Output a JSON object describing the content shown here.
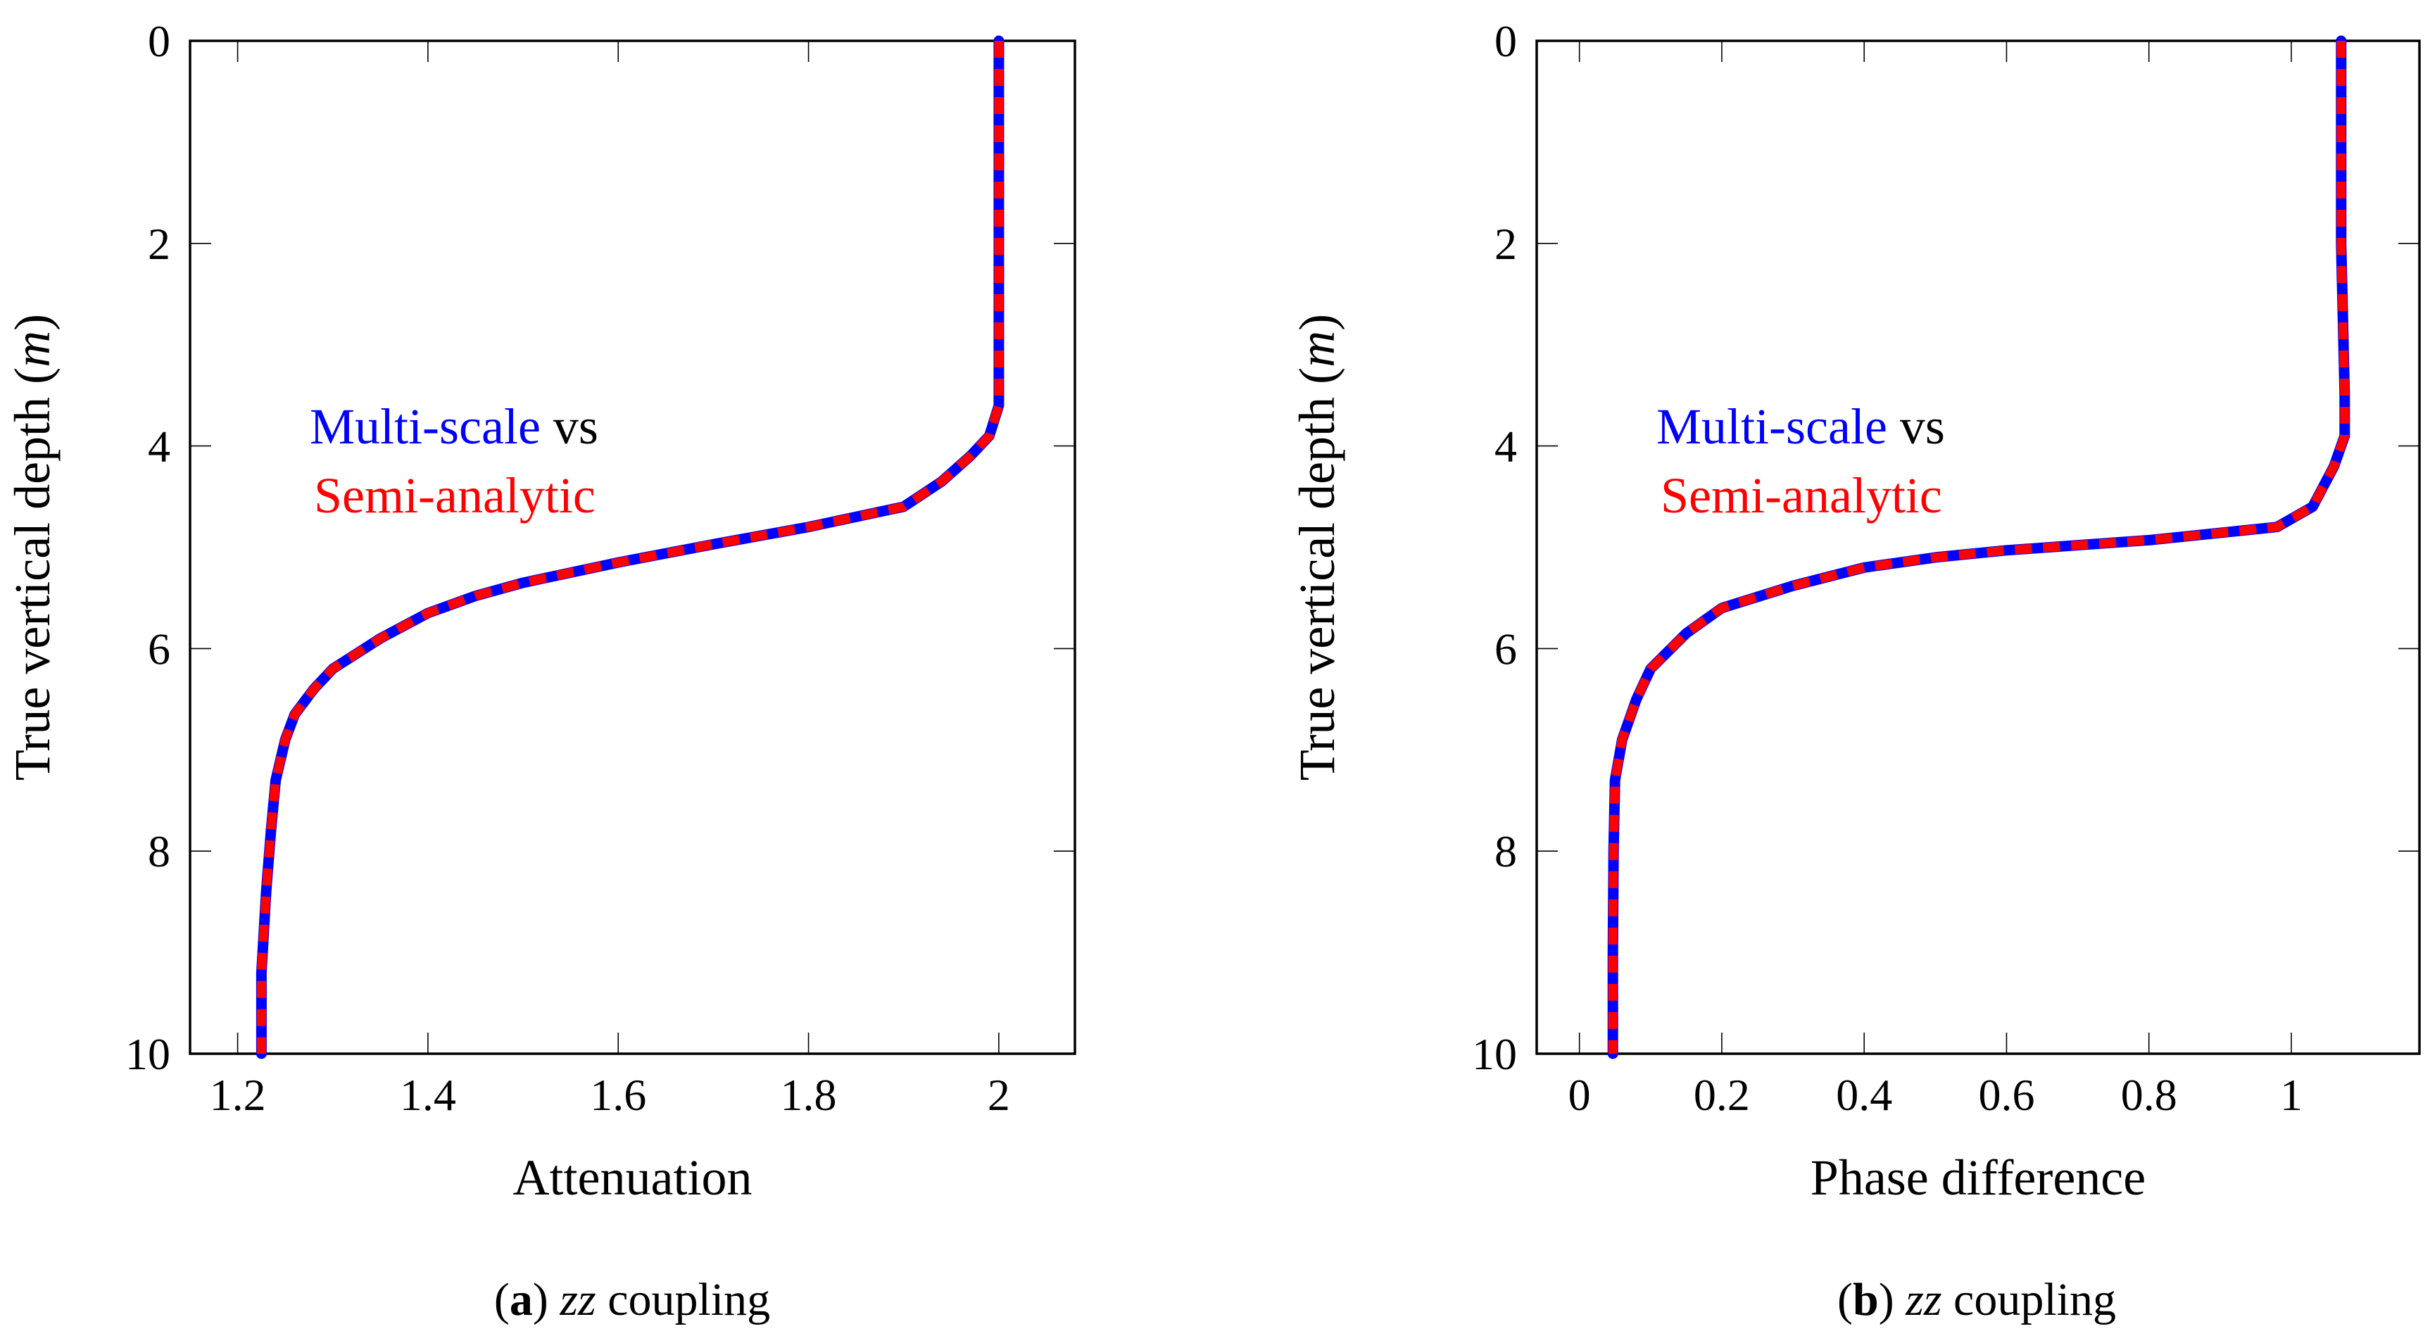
{
  "chart_data": [
    {
      "type": "line",
      "panel": "a",
      "xlabel": "Attenuation",
      "ylabel": "True vertical depth (m)",
      "ylabel_text": "True vertical depth (",
      "ylabel_unit": "m",
      "ylabel_close": ")",
      "caption": {
        "letter": "a",
        "coupling": "zz",
        "text": "coupling"
      },
      "xlim": [
        1.15,
        2.08
      ],
      "ylim": [
        10,
        0
      ],
      "x_ticks": [
        1.2,
        1.4,
        1.6,
        1.8,
        2
      ],
      "x_tick_labels": [
        "1.2",
        "1.4",
        "1.6",
        "1.8",
        "2"
      ],
      "y_ticks": [
        0,
        2,
        4,
        6,
        8,
        10
      ],
      "y_tick_labels": [
        "0",
        "2",
        "4",
        "6",
        "8",
        "10"
      ],
      "legend": {
        "series1": "Multi-scale",
        "connector": " vs",
        "series2": "Semi-analytic",
        "anchor": "upper-left"
      },
      "series": [
        {
          "name": "Multi-scale",
          "color": "#0000ff",
          "style": "solid",
          "x": [
            2.0,
            2.0,
            2.0,
            2.0,
            1.99,
            1.97,
            1.94,
            1.9,
            1.8,
            1.7,
            1.6,
            1.5,
            1.45,
            1.4,
            1.35,
            1.3,
            1.28,
            1.26,
            1.25,
            1.24,
            1.235,
            1.23,
            1.225,
            1.225
          ],
          "y": [
            0,
            1,
            2,
            3.6,
            3.9,
            4.1,
            4.35,
            4.6,
            4.8,
            4.97,
            5.15,
            5.35,
            5.48,
            5.65,
            5.9,
            6.2,
            6.4,
            6.65,
            6.9,
            7.3,
            7.8,
            8.4,
            9.2,
            10
          ]
        },
        {
          "name": "Semi-analytic",
          "color": "#ff0000",
          "style": "dashed",
          "x": [
            2.0,
            2.0,
            2.0,
            2.0,
            1.99,
            1.97,
            1.94,
            1.9,
            1.8,
            1.7,
            1.6,
            1.5,
            1.45,
            1.4,
            1.35,
            1.3,
            1.28,
            1.26,
            1.25,
            1.24,
            1.235,
            1.23,
            1.225,
            1.225
          ],
          "y": [
            0,
            1,
            2,
            3.6,
            3.9,
            4.1,
            4.35,
            4.6,
            4.8,
            4.97,
            5.15,
            5.35,
            5.48,
            5.65,
            5.9,
            6.2,
            6.4,
            6.65,
            6.9,
            7.3,
            7.8,
            8.4,
            9.2,
            10
          ]
        }
      ]
    },
    {
      "type": "line",
      "panel": "b",
      "xlabel": "Phase difference",
      "ylabel": "True vertical depth (m)",
      "ylabel_text": "True vertical depth (",
      "ylabel_unit": "m",
      "ylabel_close": ")",
      "caption": {
        "letter": "b",
        "coupling": "zz",
        "text": "coupling"
      },
      "xlim": [
        -0.06,
        1.18
      ],
      "ylim": [
        10,
        0
      ],
      "x_ticks": [
        0,
        0.2,
        0.4,
        0.6,
        0.8,
        1
      ],
      "x_tick_labels": [
        "0",
        "0.2",
        "0.4",
        "0.6",
        "0.8",
        "1"
      ],
      "y_ticks": [
        0,
        2,
        4,
        6,
        8,
        10
      ],
      "y_tick_labels": [
        "0",
        "2",
        "4",
        "6",
        "8",
        "10"
      ],
      "legend": {
        "series1": "Multi-scale",
        "connector": " vs",
        "series2": "Semi-analytic",
        "anchor": "upper-left"
      },
      "series": [
        {
          "name": "Multi-scale",
          "color": "#0000ff",
          "style": "solid",
          "x": [
            1.07,
            1.07,
            1.07,
            1.075,
            1.075,
            1.06,
            1.03,
            0.98,
            0.8,
            0.6,
            0.5,
            0.4,
            0.3,
            0.2,
            0.15,
            0.1,
            0.08,
            0.06,
            0.05,
            0.048,
            0.047,
            0.047
          ],
          "y": [
            0,
            1,
            2,
            3.5,
            3.9,
            4.2,
            4.6,
            4.8,
            4.93,
            5.03,
            5.1,
            5.2,
            5.38,
            5.6,
            5.85,
            6.2,
            6.5,
            6.9,
            7.3,
            8.0,
            9.0,
            10
          ]
        },
        {
          "name": "Semi-analytic",
          "color": "#ff0000",
          "style": "dashed",
          "x": [
            1.07,
            1.07,
            1.07,
            1.075,
            1.075,
            1.06,
            1.03,
            0.98,
            0.8,
            0.6,
            0.5,
            0.4,
            0.3,
            0.2,
            0.15,
            0.1,
            0.08,
            0.06,
            0.05,
            0.048,
            0.047,
            0.047
          ],
          "y": [
            0,
            1,
            2,
            3.5,
            3.9,
            4.2,
            4.6,
            4.8,
            4.93,
            5.03,
            5.1,
            5.2,
            5.38,
            5.6,
            5.85,
            6.2,
            6.5,
            6.9,
            7.3,
            8.0,
            9.0,
            10
          ]
        }
      ]
    }
  ]
}
